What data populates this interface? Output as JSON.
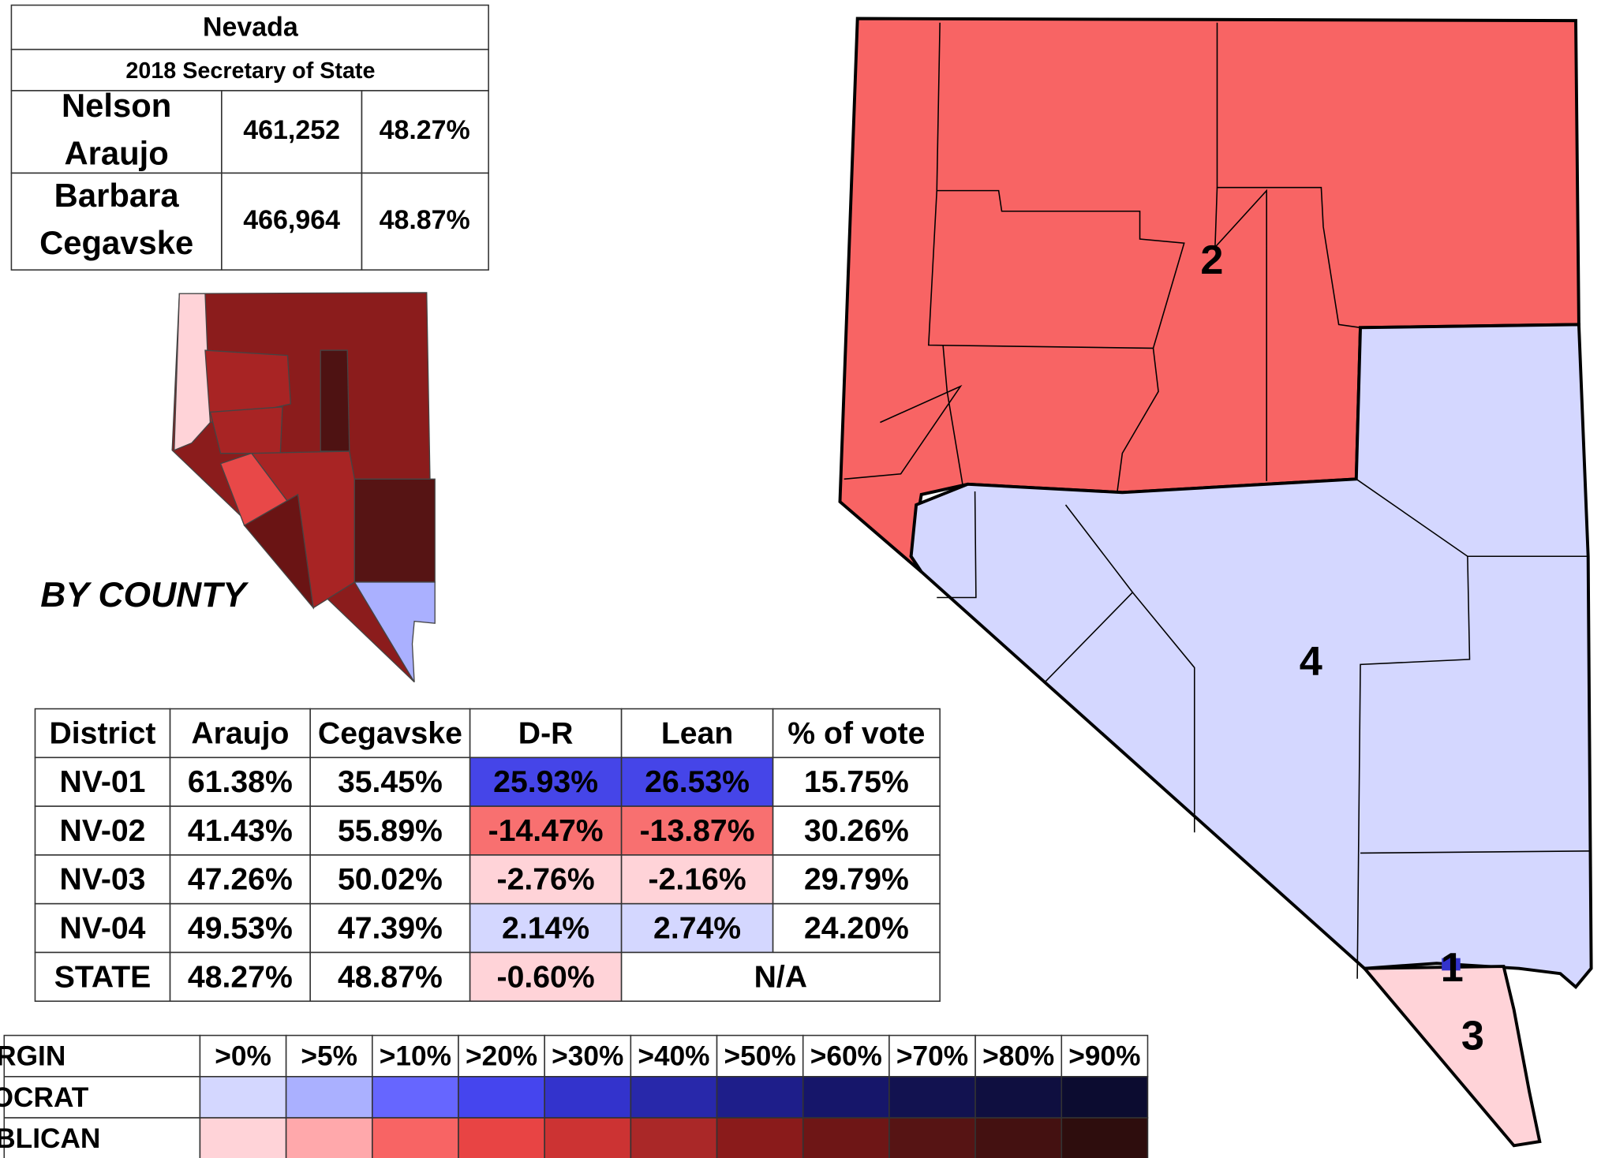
{
  "header": {
    "title": "Nevada",
    "subtitle": "2018 Secretary of State",
    "candidates": [
      {
        "name": [
          "Nelson",
          "Araujo"
        ],
        "votes": "461,252",
        "pct": "48.27%",
        "color": "#3f3fd8"
      },
      {
        "name": [
          "Barbara",
          "Cegavske"
        ],
        "votes": "466,964",
        "pct": "48.87%",
        "color": "#e81010"
      }
    ]
  },
  "county_map": {
    "label": "BY COUNTY"
  },
  "district_table": {
    "header": [
      "District",
      "Araujo",
      "Cegavske",
      "D-R",
      "Lean",
      "% of vote"
    ],
    "rows": [
      [
        "NV-01",
        "61.38%",
        "35.45%",
        "25.93%",
        "26.53%",
        "15.75%"
      ],
      [
        "NV-02",
        "41.43%",
        "55.89%",
        "-14.47%",
        "-13.87%",
        "30.26%"
      ],
      [
        "NV-03",
        "47.26%",
        "50.02%",
        "-2.76%",
        "-2.16%",
        "29.79%"
      ],
      [
        "NV-04",
        "49.53%",
        "47.39%",
        "2.14%",
        "2.74%",
        "24.20%"
      ],
      [
        "STATE",
        "48.27%",
        "48.87%",
        "-0.60%",
        "N/A"
      ]
    ]
  },
  "legend": {
    "header": [
      "MARGIN",
      ">0%",
      ">5%",
      ">10%",
      ">20%",
      ">30%",
      ">40%",
      ">50%",
      ">60%",
      ">70%",
      ">80%",
      ">90%"
    ],
    "rows": [
      {
        "label": "DEMOCRAT",
        "colors": [
          "#d4d7ff",
          "#aab0ff",
          "#6666ff",
          "#4545ee",
          "#3333cc",
          "#2828aa",
          "#1e1e8a",
          "#16166a",
          "#121250",
          "#0f0f40",
          "#0c0c30"
        ]
      },
      {
        "label": "REPUBLICAN",
        "colors": [
          "#ffd3d8",
          "#ffa8ab",
          "#f86464",
          "#e84444",
          "#cc3333",
          "#aa2828",
          "#8a1b1b",
          "#6e1616",
          "#561414",
          "#441111",
          "#2e0d0d"
        ]
      }
    ]
  },
  "district_map": {
    "labels": [
      "1",
      "2",
      "3",
      "4"
    ]
  }
}
